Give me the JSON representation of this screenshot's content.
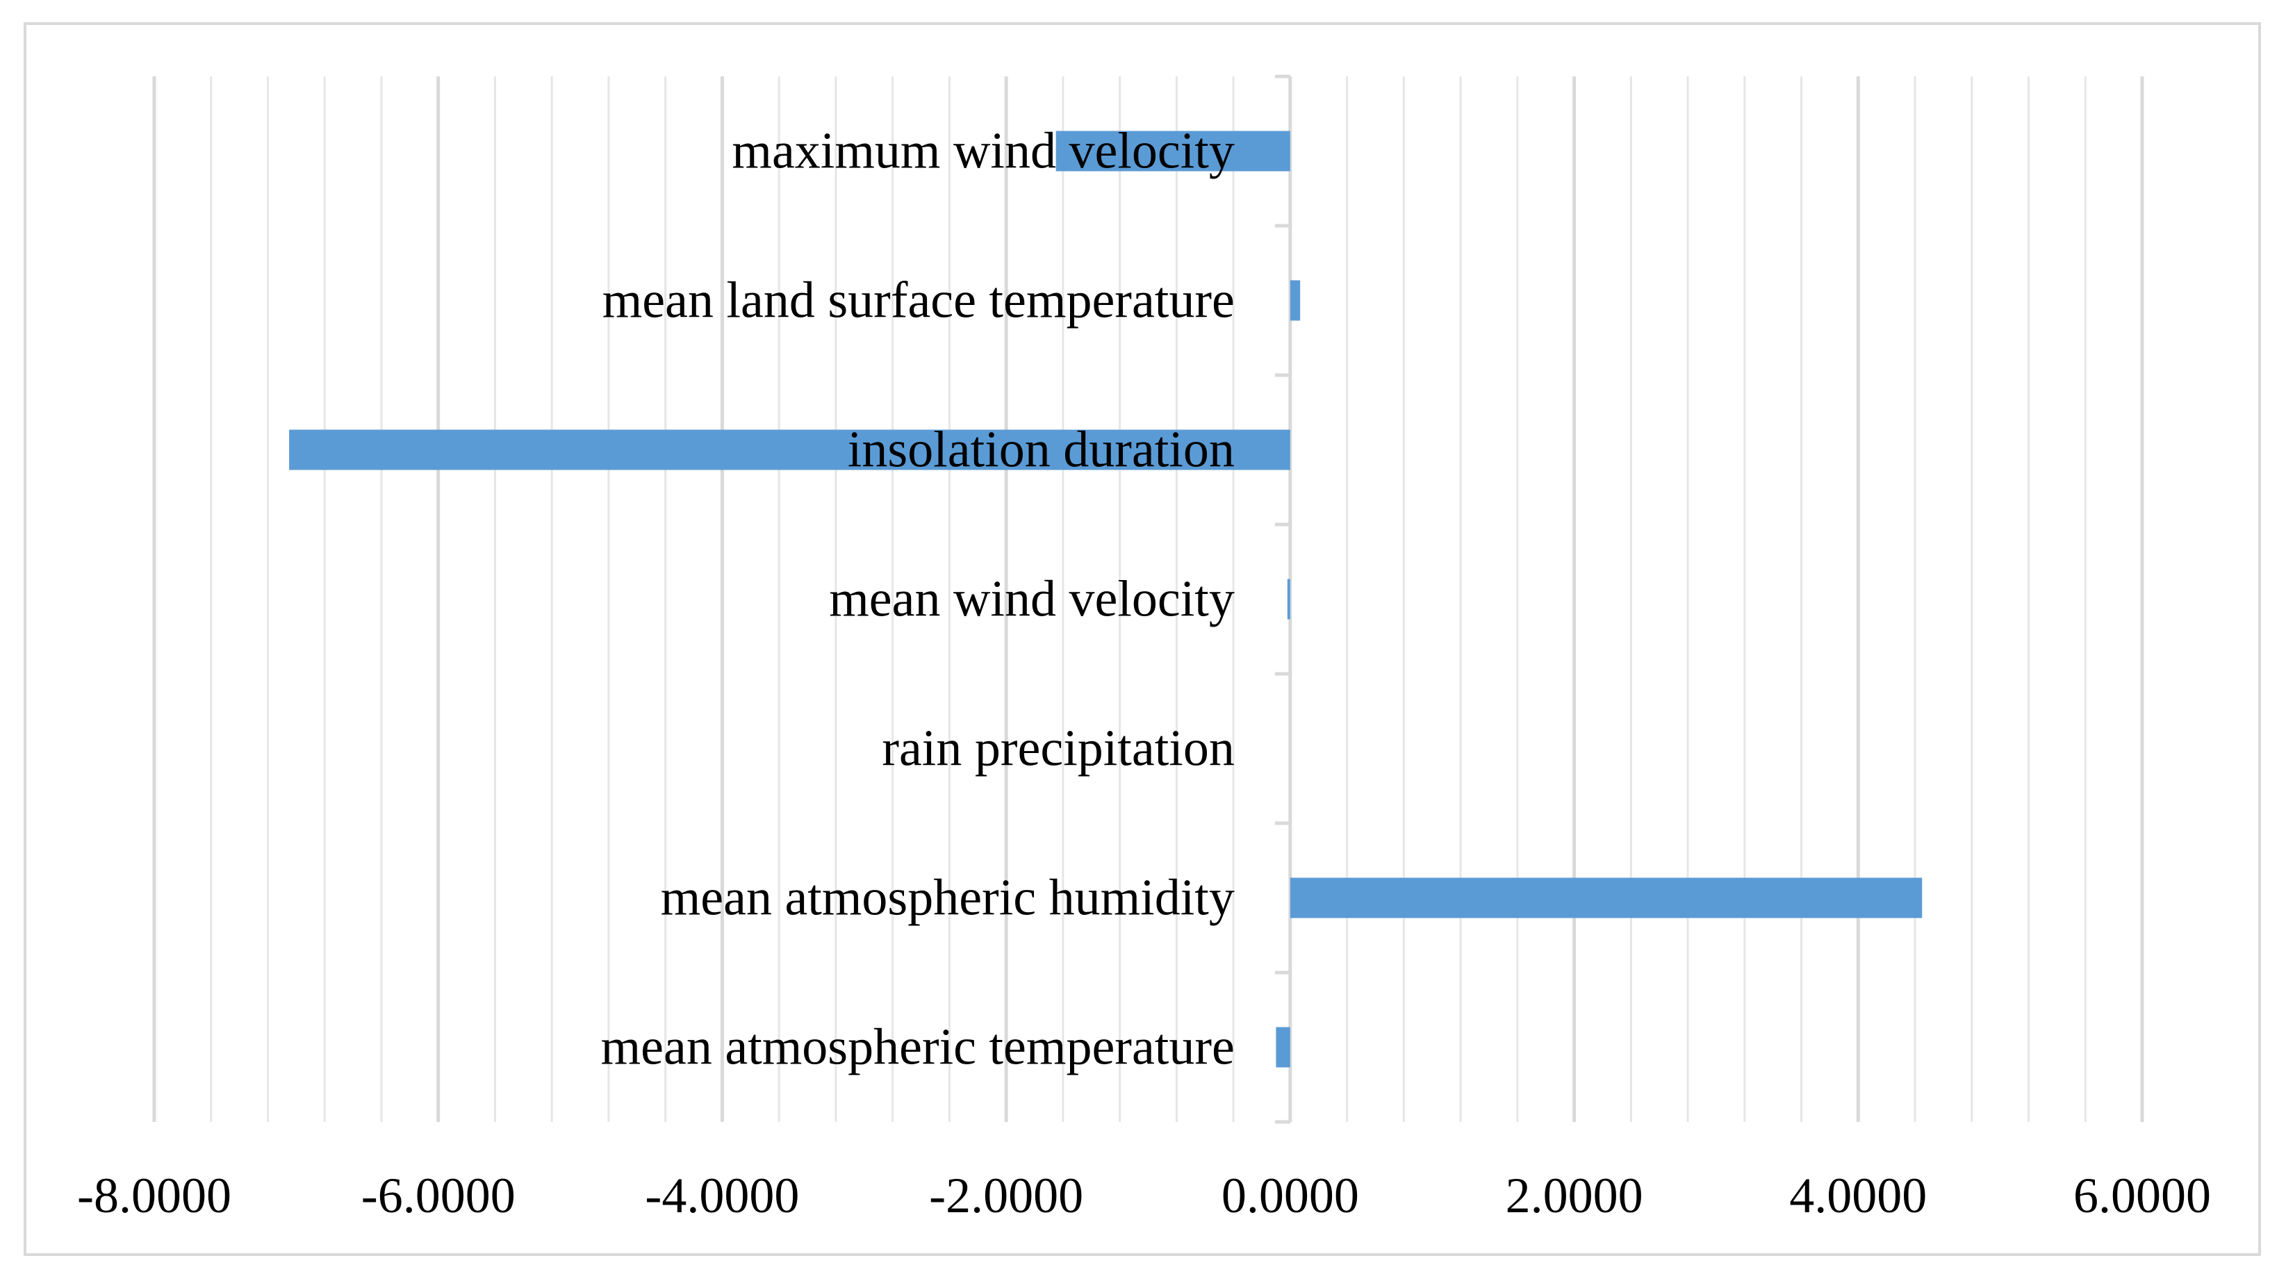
{
  "chart_data": {
    "type": "bar",
    "orientation": "horizontal",
    "title": "",
    "xlabel": "",
    "ylabel": "",
    "categories": [
      "mean atmospheric temperature",
      "mean atmospheric humidity",
      "rain precipitation",
      "mean wind velocity",
      "insolation duration",
      "mean land surface temperature",
      "maximum wind velocity"
    ],
    "values": [
      -0.1,
      4.45,
      0.0,
      -0.01,
      -7.05,
      0.07,
      -1.65
    ],
    "xlim": [
      -8,
      6
    ],
    "major_ticks": [
      -8,
      -6,
      -4,
      -2,
      0,
      2,
      4,
      6
    ],
    "tick_labels": [
      "-8.0000",
      "-6.0000",
      "-4.0000",
      "-2.0000",
      "0.0000",
      "2.0000",
      "4.0000",
      "6.0000"
    ],
    "minor_tick_step": 0.4,
    "grid": true,
    "legend": "none",
    "bar_color": "#5b9bd5",
    "gridline_color": "#d9d9d9",
    "minor_gridline_color": "#e6e6e6"
  }
}
